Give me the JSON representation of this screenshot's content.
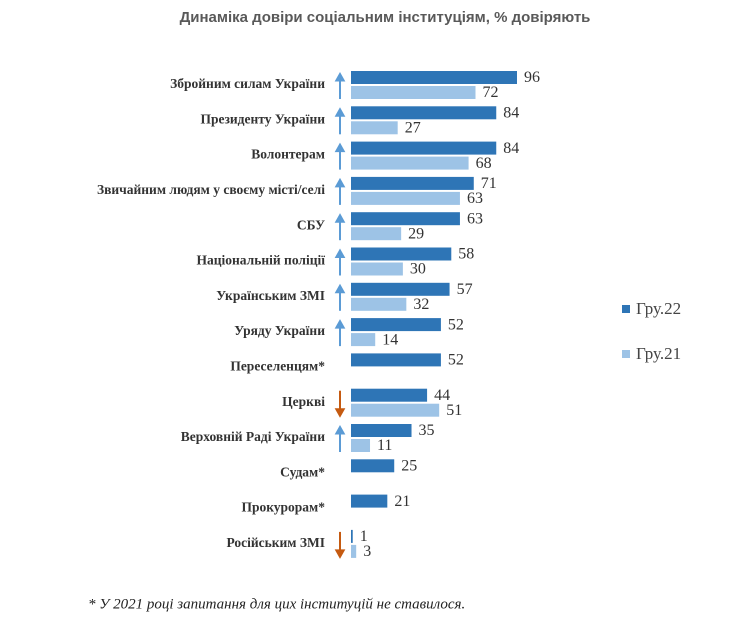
{
  "chart_data": {
    "type": "bar",
    "orientation": "horizontal",
    "title": "Динаміка довіри соціальним інституціям, % довіряють",
    "categories": [
      "Збройним силам України",
      "Президенту України",
      "Волонтерам",
      "Звичайним людям у своєму місті/селі",
      "СБУ",
      "Національній поліції",
      "Українським ЗМІ",
      "Уряду України",
      "Переселенцям*",
      "Церкві",
      "Верховній Раді України",
      "Судам*",
      "Прокурорам*",
      "Російським ЗМІ"
    ],
    "series": [
      {
        "name": "Гру.22",
        "color": "#2e75b6",
        "values": [
          96,
          84,
          84,
          71,
          63,
          58,
          57,
          52,
          52,
          44,
          35,
          25,
          21,
          1
        ]
      },
      {
        "name": "Гру.21",
        "color": "#9dc3e6",
        "values": [
          72,
          27,
          68,
          63,
          29,
          30,
          32,
          14,
          null,
          51,
          11,
          null,
          null,
          3
        ]
      }
    ],
    "legend": "right",
    "note": "* У 2021 році запитання для цих інституцій не ставилося."
  }
}
